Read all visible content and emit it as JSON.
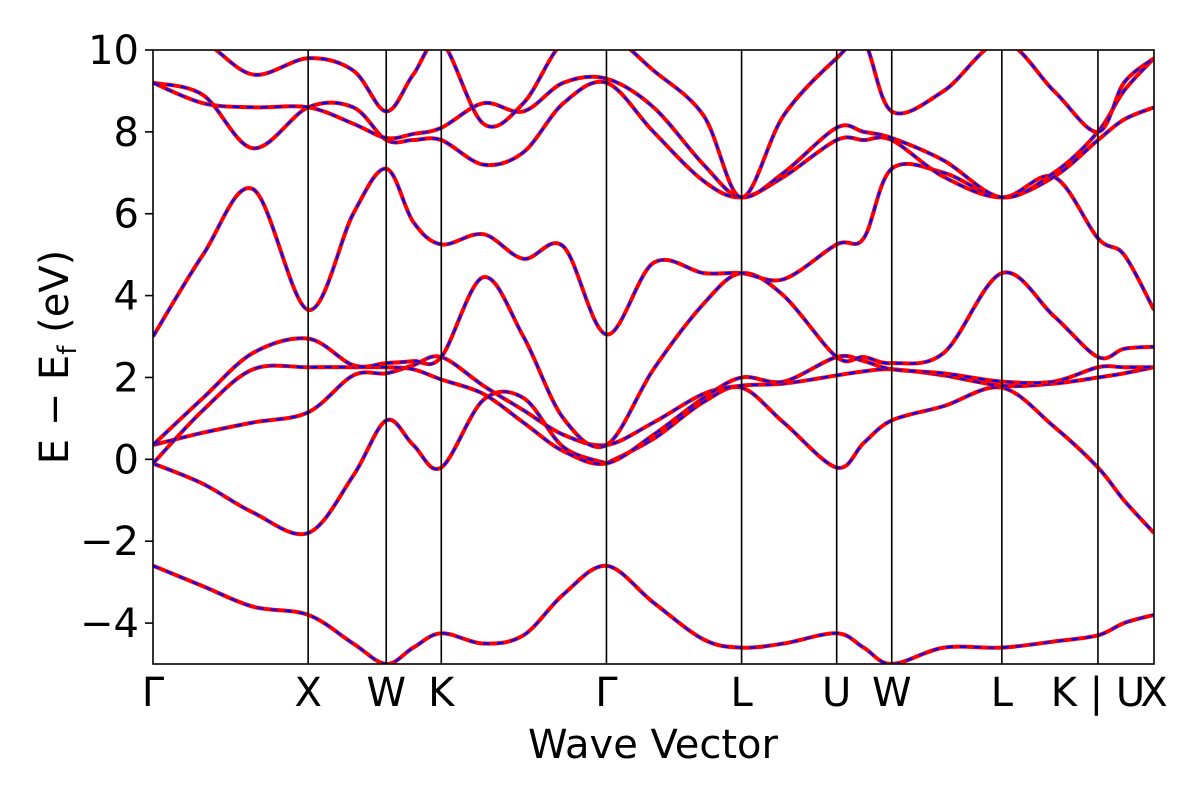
{
  "chart_data": {
    "type": "line",
    "title": "",
    "xlabel": "Wave Vector",
    "ylabel": {
      "main": "E − E",
      "sub": "f",
      "unit": " (eV)"
    },
    "ylim": [
      -5,
      10
    ],
    "yticks": [
      -4,
      -2,
      0,
      2,
      4,
      6,
      8,
      10
    ],
    "ytick_labels": [
      "−4",
      "−2",
      "0",
      "2",
      "4",
      "6",
      "8",
      "10"
    ],
    "grid": false,
    "legend": "none",
    "high_symmetry_points": [
      {
        "label": "Γ",
        "k": 0.0
      },
      {
        "label": "X",
        "k": 0.155
      },
      {
        "label": "W",
        "k": 0.233
      },
      {
        "label": "K",
        "k": 0.288
      },
      {
        "label": "Γ",
        "k": 0.453
      },
      {
        "label": "L",
        "k": 0.588
      },
      {
        "label": "U",
        "k": 0.683
      },
      {
        "label": "W",
        "k": 0.738
      },
      {
        "label": "L",
        "k": 0.848
      },
      {
        "label": "K | U",
        "k": 0.944
      },
      {
        "label": "X",
        "k": 1.0
      }
    ],
    "series_colors": {
      "solid": "#ff0000",
      "dashed": "#0000ff"
    },
    "bands": [
      {
        "k": [
          0,
          0.05,
          0.1,
          0.155,
          0.2,
          0.233,
          0.26,
          0.288,
          0.33,
          0.37,
          0.41,
          0.453,
          0.5,
          0.55,
          0.588,
          0.63,
          0.683,
          0.71,
          0.738,
          0.79,
          0.848,
          0.9,
          0.944,
          0.97,
          1.0
        ],
        "E": [
          -2.6,
          -3.1,
          -3.6,
          -3.8,
          -4.5,
          -5.0,
          -4.6,
          -4.25,
          -4.5,
          -4.3,
          -3.3,
          -2.6,
          -3.5,
          -4.4,
          -4.6,
          -4.5,
          -4.25,
          -4.6,
          -5.0,
          -4.6,
          -4.6,
          -4.45,
          -4.3,
          -4.0,
          -3.8
        ]
      },
      {
        "k": [
          0,
          0.05,
          0.1,
          0.155,
          0.2,
          0.233,
          0.26,
          0.288,
          0.33,
          0.37,
          0.41,
          0.453
        ],
        "E": [
          -0.1,
          -0.6,
          -1.3,
          -1.8,
          -0.4,
          0.95,
          0.35,
          -0.2,
          1.45,
          1.5,
          0.3,
          -0.1
        ]
      },
      {
        "k": [
          0.453,
          0.5,
          0.55,
          0.588,
          0.63,
          0.683,
          0.71,
          0.738,
          0.79,
          0.848,
          0.9,
          0.944,
          0.97,
          1.0
        ],
        "E": [
          -0.1,
          0.5,
          1.4,
          1.75,
          0.9,
          -0.2,
          0.4,
          0.95,
          1.3,
          1.75,
          0.8,
          -0.2,
          -1.0,
          -1.8
        ]
      },
      {
        "k": [
          0,
          0.05,
          0.1,
          0.155,
          0.2,
          0.233,
          0.26,
          0.288,
          0.33,
          0.37,
          0.41,
          0.453,
          0.5,
          0.55,
          0.588,
          0.63,
          0.683,
          0.71,
          0.738,
          0.79,
          0.848,
          0.9,
          0.944,
          0.97,
          1.0
        ],
        "E": [
          0.35,
          0.65,
          0.9,
          1.15,
          2.05,
          2.1,
          2.3,
          2.5,
          1.8,
          1.2,
          0.6,
          0.35,
          0.9,
          1.6,
          1.8,
          1.85,
          2.05,
          2.15,
          2.2,
          2.05,
          1.8,
          1.85,
          2.0,
          2.1,
          2.25
        ]
      },
      {
        "k": [
          0,
          0.05,
          0.1,
          0.155,
          0.2,
          0.233,
          0.26,
          0.288,
          0.33,
          0.37,
          0.41,
          0.453,
          0.5,
          0.55,
          0.588,
          0.63,
          0.683,
          0.71,
          0.738,
          0.79,
          0.848,
          0.9,
          0.944,
          0.97,
          1.0
        ],
        "E": [
          -0.1,
          1.2,
          2.2,
          2.25,
          2.25,
          2.25,
          2.2,
          1.95,
          1.6,
          0.9,
          0.2,
          -0.1,
          0.6,
          1.5,
          2.0,
          1.9,
          2.5,
          2.4,
          2.2,
          2.1,
          1.9,
          1.9,
          2.25,
          2.25,
          2.25
        ]
      },
      {
        "k": [
          0,
          0.05,
          0.1,
          0.155,
          0.2,
          0.233,
          0.26,
          0.288,
          0.33,
          0.37,
          0.41,
          0.453,
          0.5,
          0.55,
          0.588,
          0.63,
          0.683,
          0.71,
          0.738,
          0.79,
          0.848,
          0.9,
          0.944,
          0.97,
          1.0
        ],
        "E": [
          0.35,
          1.5,
          2.6,
          2.95,
          2.3,
          2.35,
          2.4,
          2.5,
          4.45,
          3.0,
          1.0,
          0.35,
          2.2,
          3.8,
          4.55,
          4.0,
          2.5,
          2.5,
          2.35,
          2.6,
          4.55,
          3.5,
          2.5,
          2.7,
          2.75
        ]
      },
      {
        "k": [
          0,
          0.05,
          0.1,
          0.155,
          0.2,
          0.233,
          0.26,
          0.288,
          0.33,
          0.37,
          0.41,
          0.453,
          0.5,
          0.55,
          0.588,
          0.63,
          0.683,
          0.71,
          0.738,
          0.79,
          0.848,
          0.9,
          0.944,
          0.97,
          1.0
        ],
        "E": [
          3.0,
          5.0,
          6.6,
          3.65,
          6.0,
          7.1,
          5.8,
          5.25,
          5.5,
          4.9,
          5.2,
          3.05,
          4.8,
          4.55,
          4.55,
          4.4,
          5.25,
          5.4,
          7.1,
          7.0,
          6.4,
          6.9,
          5.4,
          5.0,
          3.65
        ]
      },
      {
        "k": [
          0,
          0.05,
          0.1,
          0.155,
          0.2,
          0.233,
          0.26,
          0.288,
          0.33,
          0.37,
          0.41,
          0.453,
          0.5,
          0.55,
          0.588,
          0.63,
          0.683,
          0.71,
          0.738,
          0.79,
          0.848,
          0.9,
          0.944,
          0.97,
          1.0
        ],
        "E": [
          9.2,
          8.9,
          7.6,
          8.6,
          8.6,
          7.8,
          7.8,
          7.8,
          7.2,
          7.5,
          8.7,
          9.2,
          8.0,
          6.8,
          6.4,
          6.9,
          7.8,
          7.8,
          7.8,
          6.9,
          6.4,
          6.9,
          7.8,
          8.3,
          8.6
        ]
      },
      {
        "k": [
          0,
          0.05,
          0.1,
          0.155,
          0.2,
          0.233,
          0.26,
          0.288,
          0.33,
          0.37,
          0.41,
          0.453,
          0.5,
          0.55,
          0.588,
          0.63,
          0.683,
          0.71,
          0.738,
          0.79,
          0.848,
          0.9,
          0.944,
          0.97,
          1.0
        ],
        "E": [
          9.2,
          8.7,
          8.6,
          8.6,
          8.2,
          7.85,
          7.95,
          8.1,
          8.7,
          8.5,
          9.2,
          9.3,
          8.6,
          7.2,
          6.4,
          7.0,
          8.1,
          8.0,
          7.85,
          7.3,
          6.4,
          7.0,
          8.0,
          9.0,
          9.8
        ]
      },
      {
        "k": [
          0,
          0.05,
          0.1,
          0.155,
          0.2,
          0.233,
          0.26,
          0.288,
          0.33,
          0.37,
          0.41,
          0.453,
          0.5,
          0.55,
          0.588,
          0.63,
          0.683,
          0.71,
          0.738,
          0.79,
          0.848,
          0.9,
          0.944,
          0.97,
          1.0
        ],
        "E": [
          10.4,
          10.2,
          9.4,
          9.8,
          9.5,
          8.5,
          9.4,
          10.2,
          8.2,
          8.7,
          10.2,
          10.4,
          9.5,
          8.4,
          6.4,
          8.4,
          9.8,
          10.2,
          8.5,
          9.0,
          10.2,
          9.0,
          8.0,
          9.2,
          9.8
        ]
      }
    ]
  }
}
